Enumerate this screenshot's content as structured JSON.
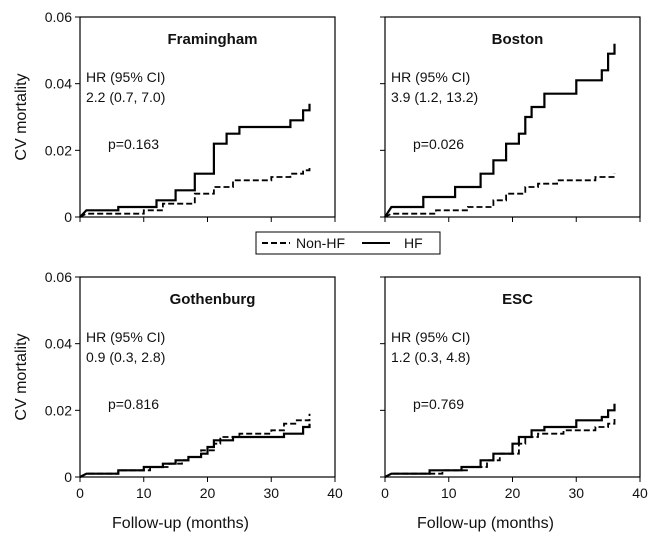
{
  "chart_data": {
    "type": "line",
    "legend": {
      "placement": "center",
      "entries": [
        {
          "label": "Non-HF",
          "style": "dashed"
        },
        {
          "label": "HF",
          "style": "solid"
        }
      ]
    },
    "xlabel": "Follow-up (months)",
    "ylabel": "CV mortality",
    "xlim": [
      0,
      40
    ],
    "ylim": [
      0,
      0.06
    ],
    "xticks": [
      "0",
      "10",
      "20",
      "30",
      "40"
    ],
    "yticks": [
      "0",
      "0.02",
      "0.04",
      "0.06"
    ],
    "panels": [
      {
        "title": "Framingham",
        "hr_label": "HR (95% CI)",
        "hr_value": "2.2 (0.7, 7.0)",
        "p_value": "p=0.163",
        "series": [
          {
            "name": "HF",
            "style": "solid",
            "points": [
              [
                0,
                0
              ],
              [
                1,
                0.002
              ],
              [
                6,
                0.002
              ],
              [
                6,
                0.003
              ],
              [
                12,
                0.003
              ],
              [
                12,
                0.005
              ],
              [
                15,
                0.005
              ],
              [
                15,
                0.008
              ],
              [
                18,
                0.008
              ],
              [
                18,
                0.013
              ],
              [
                21,
                0.013
              ],
              [
                21,
                0.022
              ],
              [
                23,
                0.022
              ],
              [
                23,
                0.025
              ],
              [
                25,
                0.025
              ],
              [
                25,
                0.027
              ],
              [
                33,
                0.027
              ],
              [
                33,
                0.029
              ],
              [
                35,
                0.029
              ],
              [
                35,
                0.032
              ],
              [
                36,
                0.032
              ],
              [
                36,
                0.034
              ]
            ]
          },
          {
            "name": "Non-HF",
            "style": "dashed",
            "points": [
              [
                0,
                0
              ],
              [
                1,
                0.001
              ],
              [
                10,
                0.001
              ],
              [
                10,
                0.002
              ],
              [
                13,
                0.002
              ],
              [
                13,
                0.004
              ],
              [
                18,
                0.004
              ],
              [
                18,
                0.007
              ],
              [
                21,
                0.007
              ],
              [
                21,
                0.009
              ],
              [
                24,
                0.009
              ],
              [
                24,
                0.011
              ],
              [
                30,
                0.011
              ],
              [
                30,
                0.012
              ],
              [
                33,
                0.012
              ],
              [
                33,
                0.013
              ],
              [
                35,
                0.013
              ],
              [
                35,
                0.014
              ],
              [
                36,
                0.014
              ],
              [
                36,
                0.015
              ]
            ]
          }
        ]
      },
      {
        "title": "Boston",
        "hr_label": "HR (95% CI)",
        "hr_value": "3.9 (1.2, 13.2)",
        "p_value": "p=0.026",
        "series": [
          {
            "name": "HF",
            "style": "solid",
            "points": [
              [
                0,
                0
              ],
              [
                1,
                0.003
              ],
              [
                6,
                0.003
              ],
              [
                6,
                0.006
              ],
              [
                11,
                0.006
              ],
              [
                11,
                0.009
              ],
              [
                15,
                0.009
              ],
              [
                15,
                0.013
              ],
              [
                17,
                0.013
              ],
              [
                17,
                0.017
              ],
              [
                19,
                0.017
              ],
              [
                19,
                0.022
              ],
              [
                21,
                0.022
              ],
              [
                21,
                0.025
              ],
              [
                22,
                0.025
              ],
              [
                22,
                0.03
              ],
              [
                23,
                0.03
              ],
              [
                23,
                0.033
              ],
              [
                25,
                0.033
              ],
              [
                25,
                0.037
              ],
              [
                30,
                0.037
              ],
              [
                30,
                0.041
              ],
              [
                34,
                0.041
              ],
              [
                34,
                0.044
              ],
              [
                35,
                0.044
              ],
              [
                35,
                0.049
              ],
              [
                36,
                0.049
              ],
              [
                36,
                0.052
              ]
            ]
          },
          {
            "name": "Non-HF",
            "style": "dashed",
            "points": [
              [
                0,
                0
              ],
              [
                1,
                0.001
              ],
              [
                8,
                0.001
              ],
              [
                8,
                0.002
              ],
              [
                13,
                0.002
              ],
              [
                13,
                0.003
              ],
              [
                17,
                0.003
              ],
              [
                17,
                0.005
              ],
              [
                19,
                0.005
              ],
              [
                19,
                0.007
              ],
              [
                22,
                0.007
              ],
              [
                22,
                0.009
              ],
              [
                24,
                0.009
              ],
              [
                24,
                0.01
              ],
              [
                27,
                0.01
              ],
              [
                27,
                0.011
              ],
              [
                33,
                0.011
              ],
              [
                33,
                0.012
              ],
              [
                36,
                0.012
              ],
              [
                36,
                0.013
              ]
            ]
          }
        ]
      },
      {
        "title": "Gothenburg",
        "hr_label": "HR (95% CI)",
        "hr_value": "0.9 (0.3, 2.8)",
        "p_value": "p=0.816",
        "series": [
          {
            "name": "HF",
            "style": "solid",
            "points": [
              [
                0,
                0
              ],
              [
                1,
                0.001
              ],
              [
                6,
                0.001
              ],
              [
                6,
                0.002
              ],
              [
                10,
                0.002
              ],
              [
                10,
                0.003
              ],
              [
                13,
                0.003
              ],
              [
                13,
                0.004
              ],
              [
                15,
                0.004
              ],
              [
                15,
                0.005
              ],
              [
                17,
                0.005
              ],
              [
                17,
                0.006
              ],
              [
                19,
                0.006
              ],
              [
                19,
                0.007
              ],
              [
                20,
                0.007
              ],
              [
                20,
                0.009
              ],
              [
                21,
                0.009
              ],
              [
                21,
                0.011
              ],
              [
                24,
                0.011
              ],
              [
                24,
                0.012
              ],
              [
                32,
                0.012
              ],
              [
                32,
                0.013
              ],
              [
                35,
                0.013
              ],
              [
                35,
                0.015
              ],
              [
                36,
                0.015
              ],
              [
                36,
                0.016
              ]
            ]
          },
          {
            "name": "Non-HF",
            "style": "dashed",
            "points": [
              [
                0,
                0
              ],
              [
                1,
                0.001
              ],
              [
                6,
                0.001
              ],
              [
                6,
                0.002
              ],
              [
                11,
                0.002
              ],
              [
                11,
                0.003
              ],
              [
                14,
                0.003
              ],
              [
                14,
                0.004
              ],
              [
                16,
                0.004
              ],
              [
                16,
                0.005
              ],
              [
                17,
                0.005
              ],
              [
                17,
                0.006
              ],
              [
                19,
                0.006
              ],
              [
                19,
                0.008
              ],
              [
                21,
                0.008
              ],
              [
                21,
                0.01
              ],
              [
                22,
                0.01
              ],
              [
                22,
                0.012
              ],
              [
                25,
                0.012
              ],
              [
                25,
                0.013
              ],
              [
                30,
                0.013
              ],
              [
                30,
                0.014
              ],
              [
                32,
                0.014
              ],
              [
                32,
                0.016
              ],
              [
                34,
                0.016
              ],
              [
                34,
                0.017
              ],
              [
                36,
                0.017
              ],
              [
                36,
                0.019
              ]
            ]
          }
        ]
      },
      {
        "title": "ESC",
        "hr_label": "HR (95% CI)",
        "hr_value": "1.2 (0.3, 4.8)",
        "p_value": "p=0.769",
        "series": [
          {
            "name": "HF",
            "style": "solid",
            "points": [
              [
                0,
                0
              ],
              [
                1,
                0.001
              ],
              [
                7,
                0.001
              ],
              [
                7,
                0.002
              ],
              [
                12,
                0.002
              ],
              [
                12,
                0.003
              ],
              [
                15,
                0.003
              ],
              [
                15,
                0.005
              ],
              [
                17,
                0.005
              ],
              [
                17,
                0.007
              ],
              [
                20,
                0.007
              ],
              [
                20,
                0.01
              ],
              [
                21,
                0.01
              ],
              [
                21,
                0.012
              ],
              [
                23,
                0.012
              ],
              [
                23,
                0.014
              ],
              [
                25,
                0.014
              ],
              [
                25,
                0.015
              ],
              [
                30,
                0.015
              ],
              [
                30,
                0.017
              ],
              [
                34,
                0.017
              ],
              [
                34,
                0.018
              ],
              [
                35,
                0.018
              ],
              [
                35,
                0.02
              ],
              [
                36,
                0.02
              ],
              [
                36,
                0.022
              ]
            ]
          },
          {
            "name": "Non-HF",
            "style": "dashed",
            "points": [
              [
                0,
                0
              ],
              [
                1,
                0.001
              ],
              [
                9,
                0.001
              ],
              [
                9,
                0.002
              ],
              [
                13,
                0.002
              ],
              [
                13,
                0.003
              ],
              [
                16,
                0.003
              ],
              [
                16,
                0.005
              ],
              [
                18,
                0.005
              ],
              [
                18,
                0.007
              ],
              [
                21,
                0.007
              ],
              [
                21,
                0.01
              ],
              [
                22,
                0.01
              ],
              [
                22,
                0.012
              ],
              [
                24,
                0.012
              ],
              [
                24,
                0.013
              ],
              [
                28,
                0.013
              ],
              [
                28,
                0.014
              ],
              [
                33,
                0.014
              ],
              [
                33,
                0.015
              ],
              [
                35,
                0.015
              ],
              [
                35,
                0.016
              ],
              [
                36,
                0.016
              ],
              [
                36,
                0.018
              ]
            ]
          }
        ]
      }
    ]
  }
}
